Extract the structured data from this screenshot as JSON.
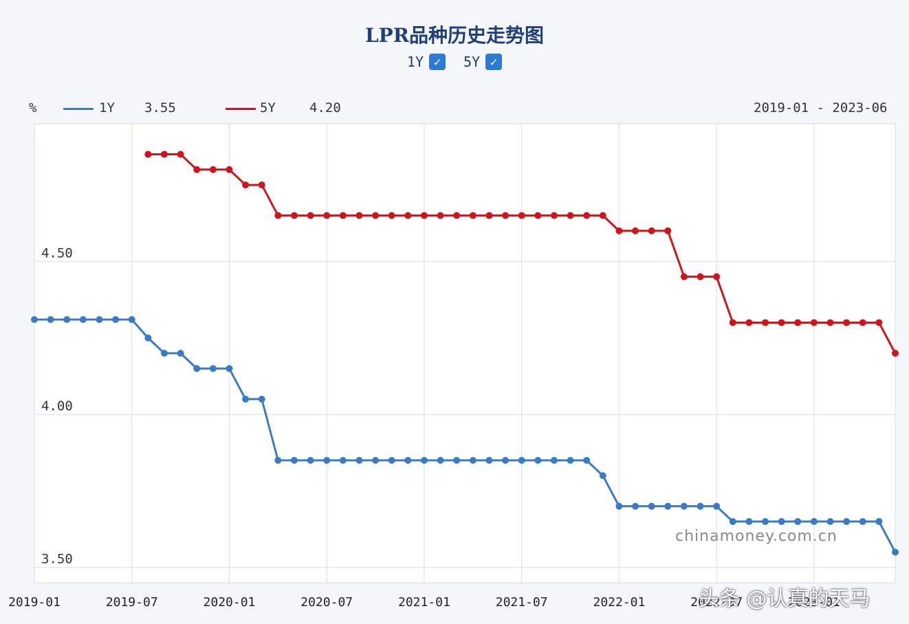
{
  "chart_data": {
    "type": "line",
    "title": "LPR品种历史走势图",
    "unit_label": "%",
    "range_label": "2019-01 - 2023-06",
    "toggles": [
      {
        "label": "1Y",
        "checked": true
      },
      {
        "label": "5Y",
        "checked": true
      }
    ],
    "legend": [
      {
        "name": "1Y",
        "latest": "3.55",
        "color": "#3a7cc4"
      },
      {
        "name": "5Y",
        "latest": "4.20",
        "color": "#d0141c"
      }
    ],
    "x_tick_labels": [
      "2019-01",
      "2019-07",
      "2020-01",
      "2020-07",
      "2021-01",
      "2021-07",
      "2022-01",
      "2022-07",
      "2023-01"
    ],
    "y_tick_labels": [
      "3.50",
      "4.00",
      "4.50"
    ],
    "ylim": [
      3.45,
      4.95
    ],
    "xlim": [
      "2019-01",
      "2023-06"
    ],
    "grid": true,
    "series": [
      {
        "name": "1Y",
        "color": "#3a7cc4",
        "points": [
          [
            "2019-01",
            4.31
          ],
          [
            "2019-02",
            4.31
          ],
          [
            "2019-03",
            4.31
          ],
          [
            "2019-04",
            4.31
          ],
          [
            "2019-05",
            4.31
          ],
          [
            "2019-06",
            4.31
          ],
          [
            "2019-07",
            4.31
          ],
          [
            "2019-08",
            4.25
          ],
          [
            "2019-09",
            4.2
          ],
          [
            "2019-10",
            4.2
          ],
          [
            "2019-11",
            4.15
          ],
          [
            "2019-12",
            4.15
          ],
          [
            "2020-01",
            4.15
          ],
          [
            "2020-02",
            4.05
          ],
          [
            "2020-03",
            4.05
          ],
          [
            "2020-04",
            3.85
          ],
          [
            "2020-05",
            3.85
          ],
          [
            "2020-06",
            3.85
          ],
          [
            "2020-07",
            3.85
          ],
          [
            "2020-08",
            3.85
          ],
          [
            "2020-09",
            3.85
          ],
          [
            "2020-10",
            3.85
          ],
          [
            "2020-11",
            3.85
          ],
          [
            "2020-12",
            3.85
          ],
          [
            "2021-01",
            3.85
          ],
          [
            "2021-02",
            3.85
          ],
          [
            "2021-03",
            3.85
          ],
          [
            "2021-04",
            3.85
          ],
          [
            "2021-05",
            3.85
          ],
          [
            "2021-06",
            3.85
          ],
          [
            "2021-07",
            3.85
          ],
          [
            "2021-08",
            3.85
          ],
          [
            "2021-09",
            3.85
          ],
          [
            "2021-10",
            3.85
          ],
          [
            "2021-11",
            3.85
          ],
          [
            "2021-12",
            3.8
          ],
          [
            "2022-01",
            3.7
          ],
          [
            "2022-02",
            3.7
          ],
          [
            "2022-03",
            3.7
          ],
          [
            "2022-04",
            3.7
          ],
          [
            "2022-05",
            3.7
          ],
          [
            "2022-06",
            3.7
          ],
          [
            "2022-07",
            3.7
          ],
          [
            "2022-08",
            3.65
          ],
          [
            "2022-09",
            3.65
          ],
          [
            "2022-10",
            3.65
          ],
          [
            "2022-11",
            3.65
          ],
          [
            "2022-12",
            3.65
          ],
          [
            "2023-01",
            3.65
          ],
          [
            "2023-02",
            3.65
          ],
          [
            "2023-03",
            3.65
          ],
          [
            "2023-04",
            3.65
          ],
          [
            "2023-05",
            3.65
          ],
          [
            "2023-06",
            3.55
          ]
        ]
      },
      {
        "name": "5Y",
        "color": "#d0141c",
        "points": [
          [
            "2019-08",
            4.85
          ],
          [
            "2019-09",
            4.85
          ],
          [
            "2019-10",
            4.85
          ],
          [
            "2019-11",
            4.8
          ],
          [
            "2019-12",
            4.8
          ],
          [
            "2020-01",
            4.8
          ],
          [
            "2020-02",
            4.75
          ],
          [
            "2020-03",
            4.75
          ],
          [
            "2020-04",
            4.65
          ],
          [
            "2020-05",
            4.65
          ],
          [
            "2020-06",
            4.65
          ],
          [
            "2020-07",
            4.65
          ],
          [
            "2020-08",
            4.65
          ],
          [
            "2020-09",
            4.65
          ],
          [
            "2020-10",
            4.65
          ],
          [
            "2020-11",
            4.65
          ],
          [
            "2020-12",
            4.65
          ],
          [
            "2021-01",
            4.65
          ],
          [
            "2021-02",
            4.65
          ],
          [
            "2021-03",
            4.65
          ],
          [
            "2021-04",
            4.65
          ],
          [
            "2021-05",
            4.65
          ],
          [
            "2021-06",
            4.65
          ],
          [
            "2021-07",
            4.65
          ],
          [
            "2021-08",
            4.65
          ],
          [
            "2021-09",
            4.65
          ],
          [
            "2021-10",
            4.65
          ],
          [
            "2021-11",
            4.65
          ],
          [
            "2021-12",
            4.65
          ],
          [
            "2022-01",
            4.6
          ],
          [
            "2022-02",
            4.6
          ],
          [
            "2022-03",
            4.6
          ],
          [
            "2022-04",
            4.6
          ],
          [
            "2022-05",
            4.45
          ],
          [
            "2022-06",
            4.45
          ],
          [
            "2022-07",
            4.45
          ],
          [
            "2022-08",
            4.3
          ],
          [
            "2022-09",
            4.3
          ],
          [
            "2022-10",
            4.3
          ],
          [
            "2022-11",
            4.3
          ],
          [
            "2022-12",
            4.3
          ],
          [
            "2023-01",
            4.3
          ],
          [
            "2023-02",
            4.3
          ],
          [
            "2023-03",
            4.3
          ],
          [
            "2023-04",
            4.3
          ],
          [
            "2023-05",
            4.3
          ],
          [
            "2023-06",
            4.2
          ]
        ]
      }
    ]
  },
  "watermarks": {
    "site": "chinamoney.com.cn",
    "author": "头条 @认真的天马"
  }
}
